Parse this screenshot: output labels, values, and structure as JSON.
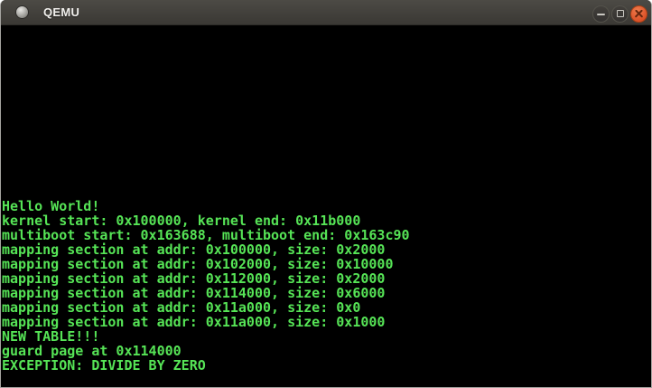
{
  "window": {
    "title": "QEMU",
    "controls": {
      "minimize_label": "minimize",
      "maximize_label": "maximize",
      "close_label": "close"
    }
  },
  "terminal": {
    "lines": [
      "Hello World!",
      "kernel start: 0x100000, kernel end: 0x11b000",
      "multiboot start: 0x163688, multiboot end: 0x163c90",
      "mapping section at addr: 0x100000, size: 0x2000",
      "mapping section at addr: 0x102000, size: 0x10000",
      "mapping section at addr: 0x112000, size: 0x2000",
      "mapping section at addr: 0x114000, size: 0x6000",
      "mapping section at addr: 0x11a000, size: 0x0",
      "mapping section at addr: 0x11a000, size: 0x1000",
      "NEW TABLE!!!",
      "guard page at 0x114000",
      "EXCEPTION: DIVIDE BY ZERO"
    ]
  },
  "colors": {
    "terminal_green": "#56e456",
    "terminal_bg": "#000000",
    "titlebar_top": "#4c4a45",
    "titlebar_bottom": "#3a3834",
    "title_text": "#f1f0ed",
    "window_border": "#a5a4a0",
    "close_top": "#ef7b4c",
    "close_bottom": "#da4f26"
  }
}
